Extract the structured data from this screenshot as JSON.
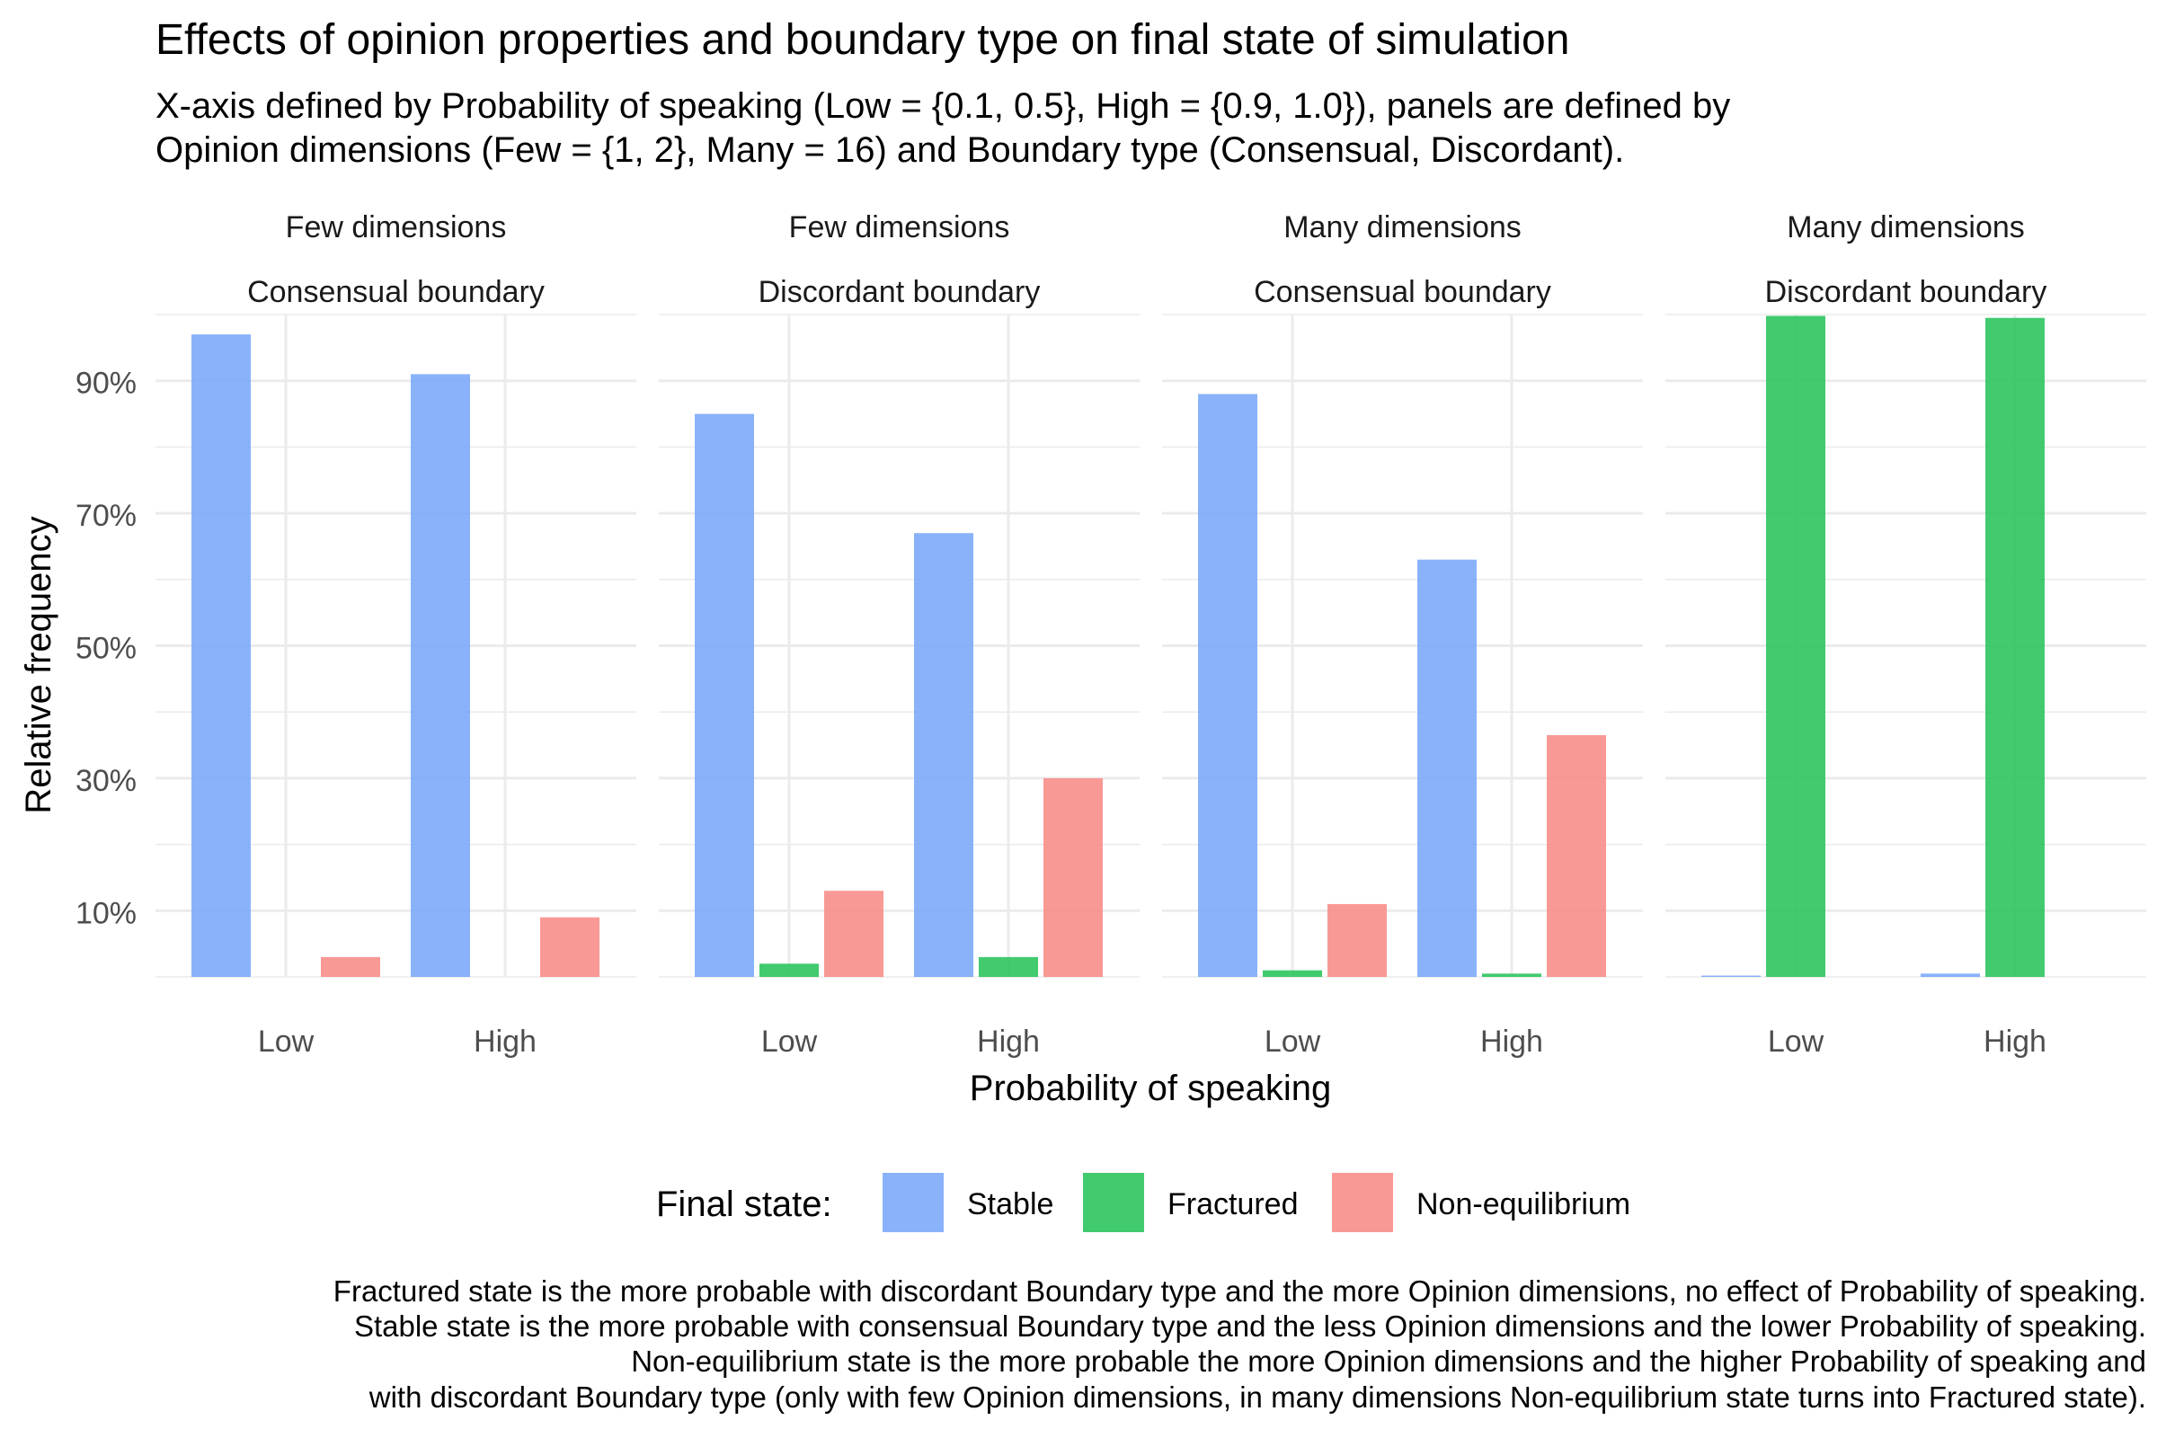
{
  "chart_data": {
    "type": "bar",
    "title": "Effects of opinion properties and boundary type on final state of simulation",
    "subtitle": [
      "X-axis defined by Probability of speaking (Low = {0.1, 0.5}, High = {0.9, 1.0}), panels are defined by",
      "Opinion dimensions (Few = {1, 2}, Many = 16) and Boundary type (Consensual, Discordant)."
    ],
    "xlabel": "Probability of speaking",
    "ylabel": "Relative frequency",
    "ylim": [
      0,
      100
    ],
    "yticks": [
      10,
      30,
      50,
      70,
      90
    ],
    "ytick_labels": [
      "10%",
      "30%",
      "50%",
      "70%",
      "90%"
    ],
    "grid": true,
    "categories": [
      "Low",
      "High"
    ],
    "legend": {
      "title": "Final state:",
      "position": "bottom",
      "entries": [
        {
          "name": "Stable",
          "color": "#7CAAF9"
        },
        {
          "name": "Fractured",
          "color": "#2EC45F"
        },
        {
          "name": "Non-equilibrium",
          "color": "#F88E8A"
        }
      ]
    },
    "panels": [
      {
        "strip": [
          "Few dimensions",
          "Consensual boundary"
        ],
        "series": [
          {
            "name": "Stable",
            "values": [
              97,
              91
            ]
          },
          {
            "name": "Fractured",
            "values": [
              0,
              0
            ]
          },
          {
            "name": "Non-equilibrium",
            "values": [
              3,
              9
            ]
          }
        ]
      },
      {
        "strip": [
          "Few dimensions",
          "Discordant boundary"
        ],
        "series": [
          {
            "name": "Stable",
            "values": [
              85,
              67
            ]
          },
          {
            "name": "Fractured",
            "values": [
              2,
              3
            ]
          },
          {
            "name": "Non-equilibrium",
            "values": [
              13,
              30
            ]
          }
        ]
      },
      {
        "strip": [
          "Many dimensions",
          "Consensual boundary"
        ],
        "series": [
          {
            "name": "Stable",
            "values": [
              88,
              63
            ]
          },
          {
            "name": "Fractured",
            "values": [
              1,
              0.5
            ]
          },
          {
            "name": "Non-equilibrium",
            "values": [
              11,
              36.5
            ]
          }
        ]
      },
      {
        "strip": [
          "Many dimensions",
          "Discordant boundary"
        ],
        "series": [
          {
            "name": "Stable",
            "values": [
              0.2,
              0.5
            ]
          },
          {
            "name": "Fractured",
            "values": [
              99.8,
              99.5
            ]
          },
          {
            "name": "Non-equilibrium",
            "values": [
              0,
              0
            ]
          }
        ]
      }
    ],
    "caption": [
      "Fractured state is the more probable with discordant Boundary type and the more Opinion dimensions, no effect of Probability of speaking.",
      "Stable state is the more probable with consensual Boundary type and the less Opinion dimensions and the lower Probability of speaking.",
      "Non-equilibrium state is the more probable the more Opinion dimensions and the higher Probability of speaking and",
      "with discordant Boundary type (only with few Opinion dimensions, in many dimensions Non-equilibrium state turns into Fractured state)."
    ]
  }
}
